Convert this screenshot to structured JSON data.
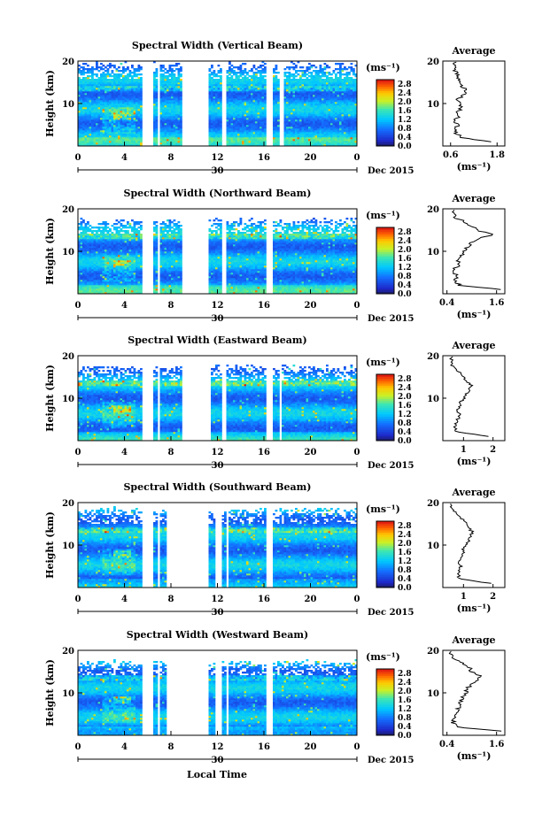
{
  "chart_data": [
    {
      "type": "heatmap",
      "title": "Spectral Width (Vertical Beam)",
      "ylabel": "Height (km)",
      "yticks": [
        "20",
        "10"
      ],
      "xticks": [
        "0",
        "4",
        "8",
        "12",
        "16",
        "20",
        "0"
      ],
      "date_tick": "30",
      "date_label": "Dec 2015",
      "ylim": [
        0,
        20
      ],
      "xlim": [
        0,
        24
      ],
      "colorbar": {
        "unit": "(ms⁻¹)",
        "ticks": [
          "2.8",
          "2.4",
          "2.0",
          "1.6",
          "1.2",
          "0.8",
          "0.4",
          "0.0"
        ],
        "range": [
          0,
          3.0
        ]
      },
      "gaps": [
        [
          5.6,
          6.4
        ],
        [
          6.8,
          7.1
        ],
        [
          8.9,
          11.3
        ],
        [
          12.4,
          12.7
        ],
        [
          16.2,
          16.8
        ],
        [
          17.4,
          17.7
        ]
      ],
      "top": 19,
      "average": {
        "title": "Average",
        "xlabel": "(ms⁻¹)",
        "xticks": [
          "0.6",
          "1.8"
        ],
        "xlim": [
          0.4,
          2.0
        ],
        "yticks": [
          "20",
          "10"
        ],
        "heights": [
          1,
          2,
          3,
          4,
          5,
          6,
          7,
          8,
          9,
          10,
          11,
          12,
          13,
          14,
          15,
          16,
          17,
          18,
          19
        ],
        "values": [
          1.6,
          0.9,
          0.75,
          0.72,
          0.8,
          0.7,
          0.8,
          0.75,
          0.9,
          0.85,
          0.8,
          0.95,
          1.0,
          0.9,
          0.85,
          0.8,
          0.75,
          0.7,
          0.7
        ]
      }
    },
    {
      "type": "heatmap",
      "title": "Spectral Width (Northward Beam)",
      "ylabel": "Height (km)",
      "yticks": [
        "20",
        "10"
      ],
      "xticks": [
        "0",
        "4",
        "8",
        "12",
        "16",
        "20",
        "0"
      ],
      "date_tick": "30",
      "date_label": "Dec 2015",
      "ylim": [
        0,
        20
      ],
      "xlim": [
        0,
        24
      ],
      "colorbar": {
        "unit": "(ms⁻¹)",
        "ticks": [
          "2.8",
          "2.4",
          "2.0",
          "1.6",
          "1.2",
          "0.8",
          "0.4",
          "0.0"
        ],
        "range": [
          0,
          3.0
        ]
      },
      "gaps": [
        [
          5.6,
          6.5
        ],
        [
          6.8,
          7.1
        ],
        [
          8.9,
          11.3
        ],
        [
          12.4,
          12.7
        ],
        [
          16.2,
          16.8
        ]
      ],
      "top": 17,
      "average": {
        "title": "Average",
        "xlabel": "(ms⁻¹)",
        "xticks": [
          "0.4",
          "1.6"
        ],
        "xlim": [
          0.3,
          1.8
        ],
        "yticks": [
          "20",
          "10"
        ],
        "heights": [
          1,
          2,
          3,
          4,
          5,
          6,
          7,
          8,
          9,
          10,
          11,
          12,
          13,
          14,
          15,
          16,
          17,
          18,
          19
        ],
        "values": [
          1.7,
          0.7,
          0.6,
          0.65,
          0.55,
          0.6,
          0.7,
          0.65,
          0.75,
          0.8,
          0.9,
          1.0,
          1.2,
          1.5,
          1.1,
          1.0,
          0.8,
          0.6,
          0.55
        ]
      }
    },
    {
      "type": "heatmap",
      "title": "Spectral Width (Eastward Beam)",
      "ylabel": "Height (km)",
      "yticks": [
        "20",
        "10"
      ],
      "xticks": [
        "0",
        "4",
        "8",
        "12",
        "16",
        "20",
        "0"
      ],
      "date_tick": "30",
      "date_label": "Dec 2015",
      "ylim": [
        0,
        20
      ],
      "xlim": [
        0,
        24
      ],
      "colorbar": {
        "unit": "(ms⁻¹)",
        "ticks": [
          "2.8",
          "2.4",
          "2.0",
          "1.6",
          "1.2",
          "0.8",
          "0.4",
          "0.0"
        ],
        "range": [
          0,
          3.0
        ]
      },
      "gaps": [
        [
          5.6,
          6.4
        ],
        [
          6.8,
          7.1
        ],
        [
          8.9,
          11.4
        ],
        [
          12.4,
          12.8
        ],
        [
          16.2,
          16.8
        ],
        [
          17.3,
          17.6
        ]
      ],
      "top": 17,
      "average": {
        "title": "Average",
        "xlabel": "(ms⁻¹)",
        "xticks": [
          "1",
          "2"
        ],
        "xlim": [
          0.3,
          2.4
        ],
        "yticks": [
          "20",
          "10"
        ],
        "heights": [
          1,
          2,
          3,
          4,
          5,
          6,
          7,
          8,
          9,
          10,
          11,
          12,
          13,
          14,
          15,
          16,
          17,
          18,
          19
        ],
        "values": [
          1.9,
          0.8,
          0.7,
          0.75,
          0.8,
          0.9,
          0.8,
          0.85,
          0.9,
          1.0,
          1.1,
          1.2,
          1.3,
          1.1,
          1.0,
          0.9,
          0.7,
          0.6,
          0.6
        ]
      }
    },
    {
      "type": "heatmap",
      "title": "Spectral Width (Southward Beam)",
      "ylabel": "Height (km)",
      "yticks": [
        "20",
        "10"
      ],
      "xticks": [
        "0",
        "4",
        "8",
        "12",
        "16",
        "20",
        "0"
      ],
      "date_tick": "30",
      "date_label": "Dec 2015",
      "ylim": [
        0,
        20
      ],
      "xlim": [
        0,
        24
      ],
      "colorbar": {
        "unit": "(ms⁻¹)",
        "ticks": [
          "2.8",
          "2.4",
          "2.0",
          "1.6",
          "1.2",
          "0.8",
          "0.4",
          "0.0"
        ],
        "range": [
          0,
          3.0
        ]
      },
      "gaps": [
        [
          5.6,
          6.5
        ],
        [
          6.8,
          7.1
        ],
        [
          7.6,
          11.2
        ],
        [
          11.8,
          12.4
        ],
        [
          12.8,
          13.0
        ],
        [
          16.2,
          16.8
        ]
      ],
      "top": 18,
      "average": {
        "title": "Average",
        "xlabel": "(ms⁻¹)",
        "xticks": [
          "1",
          "2"
        ],
        "xlim": [
          0.3,
          2.4
        ],
        "yticks": [
          "20",
          "10"
        ],
        "heights": [
          1,
          2,
          3,
          4,
          5,
          6,
          7,
          8,
          9,
          10,
          11,
          12,
          13,
          14,
          15,
          16,
          17,
          18,
          19
        ],
        "values": [
          1.9,
          0.9,
          0.8,
          0.85,
          0.9,
          0.85,
          0.9,
          1.0,
          1.0,
          1.1,
          1.2,
          1.25,
          1.3,
          1.2,
          1.1,
          1.0,
          0.8,
          0.7,
          0.6
        ]
      }
    },
    {
      "type": "heatmap",
      "title": "Spectral Width (Westward Beam)",
      "ylabel": "Height (km)",
      "yticks": [
        "20",
        "10"
      ],
      "xticks": [
        "0",
        "4",
        "8",
        "12",
        "16",
        "20",
        "0"
      ],
      "date_tick": "30",
      "date_label": "Dec 2015",
      "ylim": [
        0,
        20
      ],
      "xlim": [
        0,
        24
      ],
      "colorbar": {
        "unit": "(ms⁻¹)",
        "ticks": [
          "2.8",
          "2.4",
          "2.0",
          "1.6",
          "1.2",
          "0.8",
          "0.4",
          "0.0"
        ],
        "range": [
          0,
          3.0
        ]
      },
      "gaps": [
        [
          5.6,
          6.4
        ],
        [
          6.8,
          7.1
        ],
        [
          7.6,
          11.2
        ],
        [
          11.8,
          12.4
        ],
        [
          12.8,
          13.0
        ],
        [
          16.2,
          16.8
        ]
      ],
      "top": 17,
      "average": {
        "title": "Average",
        "xlabel": "(ms⁻¹)",
        "xticks": [
          "0.4",
          "1.6"
        ],
        "xlim": [
          0.3,
          1.8
        ],
        "yticks": [
          "20",
          "10"
        ],
        "heights": [
          1,
          2,
          3,
          4,
          5,
          6,
          7,
          8,
          9,
          10,
          11,
          12,
          13,
          14,
          15,
          16,
          17,
          18,
          19
        ],
        "values": [
          1.7,
          0.6,
          0.55,
          0.6,
          0.6,
          0.65,
          0.7,
          0.75,
          0.8,
          0.85,
          0.9,
          1.0,
          1.1,
          1.2,
          1.0,
          0.95,
          0.8,
          0.6,
          0.5
        ]
      }
    }
  ],
  "xlabel": "Local Time"
}
